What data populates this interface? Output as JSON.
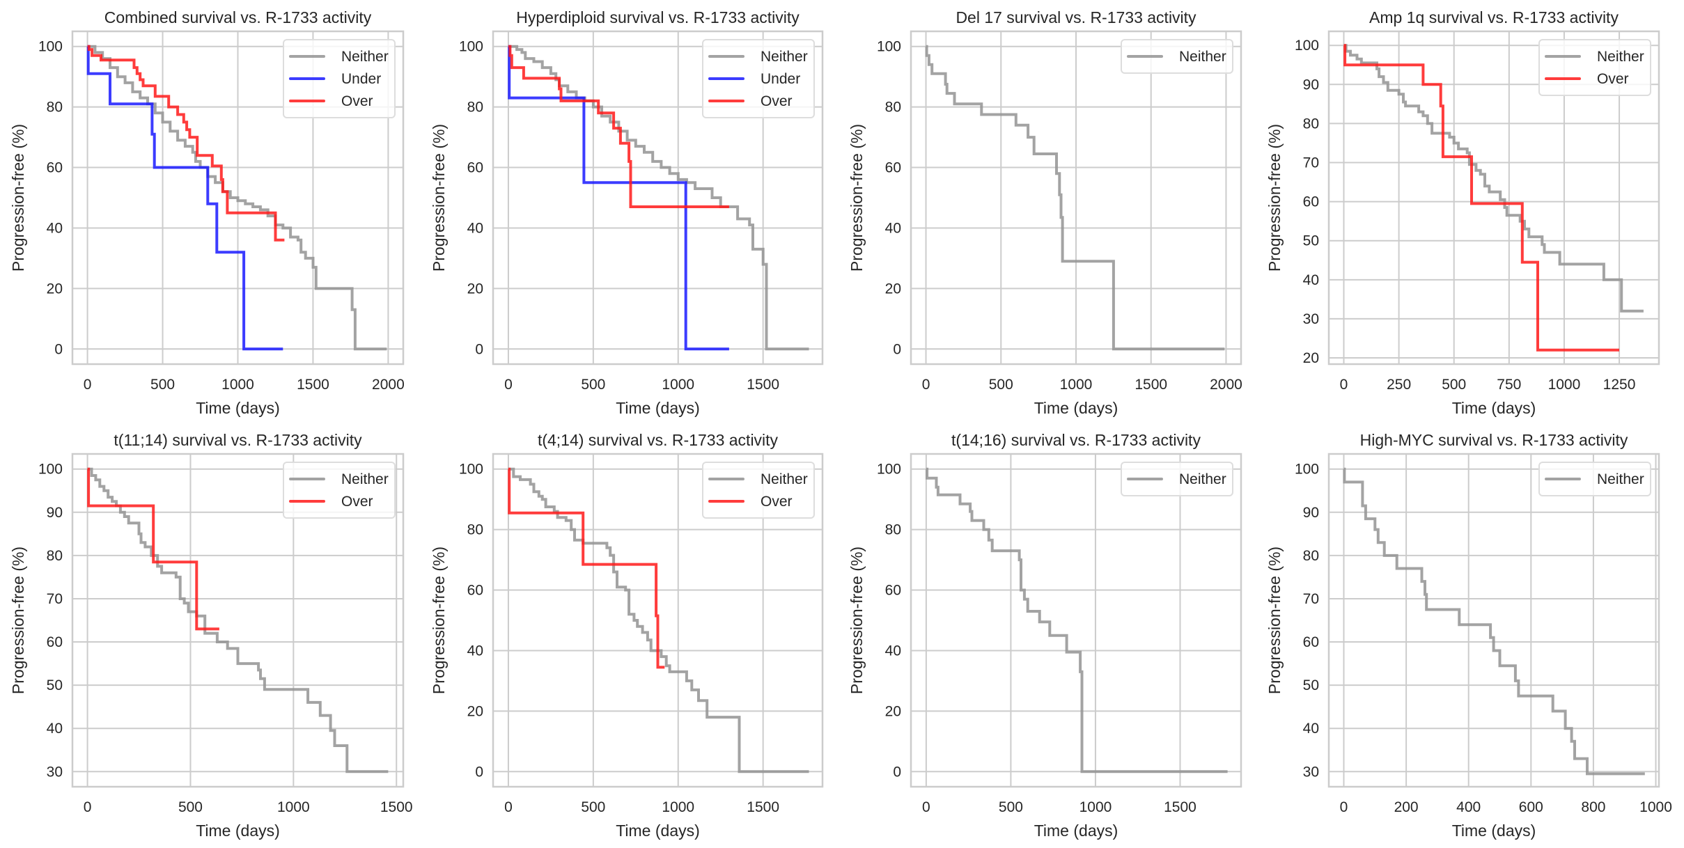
{
  "figure": {
    "colors": {
      "Neither": "#939393",
      "Under": "#1a1aff",
      "Over": "#ff1a1a",
      "grid": "#cccccc",
      "frame": "#cccccc",
      "text": "#262626"
    }
  },
  "chart_data": [
    {
      "type": "line",
      "title": "Combined survival vs. R-1733 activity",
      "xlabel": "Time (days)",
      "ylabel": "Progression-free (%)",
      "xlim": [
        -100,
        2100
      ],
      "ylim": [
        -5,
        105
      ],
      "xticks": [
        0,
        500,
        1000,
        1500,
        2000
      ],
      "yticks": [
        0,
        20,
        40,
        60,
        80,
        100
      ],
      "grid": true,
      "legend": "top-right",
      "series": [
        {
          "name": "Neither",
          "x": [
            0,
            50,
            100,
            150,
            200,
            250,
            300,
            350,
            400,
            450,
            500,
            550,
            600,
            650,
            700,
            720,
            750,
            800,
            850,
            900,
            950,
            1000,
            1050,
            1100,
            1150,
            1200,
            1250,
            1300,
            1350,
            1400,
            1420,
            1450,
            1500,
            1520,
            1750,
            1760,
            1780,
            1990
          ],
          "y": [
            100,
            98,
            96,
            93,
            90,
            88,
            85,
            83,
            81,
            78,
            75,
            72,
            69,
            67,
            65,
            62,
            60,
            57,
            55,
            52,
            50,
            49,
            48,
            47,
            46,
            44,
            41,
            40,
            37,
            36,
            32,
            30,
            27,
            20,
            20,
            13,
            0,
            0
          ]
        },
        {
          "name": "Under",
          "x": [
            0,
            5,
            150,
            430,
            445,
            800,
            860,
            1040,
            1300
          ],
          "y": [
            100,
            91,
            81,
            71,
            60,
            48,
            32,
            0,
            0
          ]
        },
        {
          "name": "Over",
          "x": [
            0,
            10,
            30,
            90,
            300,
            310,
            330,
            350,
            370,
            450,
            540,
            600,
            640,
            660,
            680,
            730,
            830,
            890,
            900,
            930,
            1250,
            1310
          ],
          "y": [
            100,
            99,
            97,
            95.5,
            95.5,
            93,
            91,
            89,
            87,
            83.5,
            80,
            77.5,
            75,
            72.5,
            70,
            64,
            60.5,
            56,
            52,
            45,
            36,
            36
          ]
        }
      ]
    },
    {
      "type": "line",
      "title": "Hyperdiploid survival vs. R-1733 activity",
      "xlabel": "Time (days)",
      "ylabel": "Progression-free (%)",
      "xlim": [
        -90,
        1850
      ],
      "ylim": [
        -5,
        105
      ],
      "xticks": [
        0,
        500,
        1000,
        1500
      ],
      "yticks": [
        0,
        20,
        40,
        60,
        80,
        100
      ],
      "grid": true,
      "legend": "top-right",
      "series": [
        {
          "name": "Neither",
          "x": [
            0,
            50,
            80,
            100,
            150,
            200,
            250,
            280,
            300,
            350,
            400,
            450,
            500,
            550,
            600,
            650,
            700,
            750,
            800,
            850,
            900,
            950,
            1000,
            1050,
            1100,
            1150,
            1200,
            1250,
            1330,
            1350,
            1420,
            1440,
            1500,
            1520,
            1530,
            1770
          ],
          "y": [
            100,
            99,
            98,
            96,
            95,
            93,
            91,
            89,
            87,
            85,
            83,
            82,
            80,
            77,
            75,
            72,
            69,
            67,
            65,
            62,
            60,
            58,
            56,
            55,
            53,
            53,
            50,
            47,
            47,
            43,
            41,
            33,
            28,
            0,
            0,
            0
          ]
        },
        {
          "name": "Under",
          "x": [
            0,
            5,
            445,
            1045,
            1300
          ],
          "y": [
            100,
            83,
            55,
            0,
            0
          ]
        },
        {
          "name": "Over",
          "x": [
            0,
            10,
            20,
            90,
            290,
            300,
            310,
            520,
            530,
            610,
            620,
            650,
            660,
            700,
            710,
            720,
            1300
          ],
          "y": [
            100,
            97,
            93,
            89.5,
            89.5,
            86,
            82,
            82,
            78,
            78,
            73,
            73,
            68,
            68,
            62,
            47,
            47
          ]
        }
      ]
    },
    {
      "type": "line",
      "title": "Del 17 survival vs. R-1733 activity",
      "xlabel": "Time (days)",
      "ylabel": "Progression-free (%)",
      "xlim": [
        -100,
        2100
      ],
      "ylim": [
        -5,
        105
      ],
      "xticks": [
        0,
        500,
        1000,
        1500,
        2000
      ],
      "yticks": [
        0,
        20,
        40,
        60,
        80,
        100
      ],
      "grid": true,
      "legend": "top-right",
      "series": [
        {
          "name": "Neither",
          "x": [
            0,
            5,
            20,
            40,
            130,
            140,
            190,
            370,
            600,
            680,
            720,
            870,
            890,
            900,
            910,
            1250,
            1990
          ],
          "y": [
            100,
            97,
            94,
            91,
            87.5,
            84.5,
            81,
            77.5,
            74,
            70,
            64.5,
            58,
            51,
            43.5,
            29,
            0,
            0
          ]
        }
      ]
    },
    {
      "type": "line",
      "title": "Amp 1q survival vs. R-1733 activity",
      "xlabel": "Time (days)",
      "ylabel": "Progression-free (%)",
      "xlim": [
        -68,
        1430
      ],
      "ylim": [
        18.4,
        103.6
      ],
      "xticks": [
        0,
        250,
        500,
        750,
        1000,
        1250
      ],
      "yticks": [
        20,
        30,
        40,
        50,
        60,
        70,
        80,
        90,
        100
      ],
      "grid": true,
      "legend": "top-right",
      "series": [
        {
          "name": "Neither",
          "x": [
            0,
            10,
            30,
            60,
            80,
            150,
            160,
            180,
            200,
            250,
            270,
            280,
            340,
            360,
            380,
            400,
            480,
            500,
            520,
            560,
            570,
            600,
            620,
            640,
            660,
            710,
            730,
            740,
            800,
            820,
            840,
            900,
            910,
            980,
            1180,
            1260,
            1360
          ],
          "y": [
            100,
            98.5,
            97.5,
            96.5,
            95.5,
            94,
            92,
            90.5,
            88.5,
            87.5,
            85.5,
            84.5,
            83,
            82,
            80,
            77.5,
            76.5,
            75,
            73.5,
            72.5,
            69.5,
            68,
            67,
            64,
            62.5,
            60.5,
            58.5,
            56.5,
            55,
            53,
            51,
            49,
            47,
            44,
            40,
            32,
            32
          ]
        },
        {
          "name": "Over",
          "x": [
            0,
            5,
            340,
            360,
            440,
            450,
            580,
            810,
            880,
            1250
          ],
          "y": [
            100,
            95,
            95,
            90,
            84.5,
            71.5,
            59.5,
            44.5,
            22,
            22
          ]
        }
      ]
    },
    {
      "type": "line",
      "title": "t(11;14) survival vs. R-1733 activity",
      "xlabel": "Time (days)",
      "ylabel": "Progression-free (%)",
      "xlim": [
        -73,
        1533
      ],
      "ylim": [
        26.5,
        103.5
      ],
      "xticks": [
        0,
        500,
        1000,
        1500
      ],
      "yticks": [
        30,
        40,
        50,
        60,
        70,
        80,
        90,
        100
      ],
      "grid": true,
      "legend": "top-right",
      "series": [
        {
          "name": "Neither",
          "x": [
            0,
            20,
            40,
            60,
            80,
            100,
            120,
            140,
            160,
            180,
            200,
            250,
            260,
            280,
            310,
            340,
            360,
            430,
            450,
            470,
            490,
            530,
            570,
            630,
            680,
            730,
            830,
            840,
            860,
            880,
            1070,
            1130,
            1180,
            1200,
            1260,
            1460
          ],
          "y": [
            100,
            98.5,
            97.5,
            96,
            95,
            93.5,
            92.5,
            91.5,
            90,
            89,
            87.5,
            85,
            83,
            82,
            80,
            77.5,
            76,
            75,
            70,
            69,
            67,
            66,
            62,
            60,
            58.5,
            55,
            53.5,
            51.5,
            49,
            49,
            46,
            43,
            39.5,
            36,
            30,
            30
          ]
        },
        {
          "name": "Over",
          "x": [
            0,
            5,
            320,
            530,
            640
          ],
          "y": [
            100,
            91.5,
            78.5,
            63,
            63
          ]
        }
      ]
    },
    {
      "type": "line",
      "title": "t(4;14) survival vs. R-1733 activity",
      "xlabel": "Time (days)",
      "ylabel": "Progression-free (%)",
      "xlim": [
        -90,
        1850
      ],
      "ylim": [
        -5,
        105
      ],
      "xticks": [
        0,
        500,
        1000,
        1500
      ],
      "yticks": [
        0,
        20,
        40,
        60,
        80,
        100
      ],
      "grid": true,
      "legend": "top-right",
      "series": [
        {
          "name": "Neither",
          "x": [
            0,
            30,
            70,
            130,
            150,
            180,
            200,
            220,
            270,
            290,
            340,
            370,
            390,
            440,
            580,
            600,
            620,
            640,
            690,
            710,
            740,
            760,
            790,
            820,
            840,
            900,
            930,
            950,
            1000,
            1050,
            1080,
            1120,
            1170,
            1360,
            1770
          ],
          "y": [
            100,
            97.5,
            96.5,
            95,
            92.5,
            91,
            90,
            87.5,
            86,
            84,
            83,
            80,
            76.5,
            75.5,
            74,
            71.5,
            66,
            61,
            60,
            52,
            50,
            48,
            46,
            43.5,
            40,
            38,
            35,
            33,
            33,
            30,
            27,
            23.5,
            18,
            0,
            0
          ]
        },
        {
          "name": "Over",
          "x": [
            0,
            5,
            440,
            870,
            880,
            920
          ],
          "y": [
            100,
            85.5,
            68.5,
            51.5,
            34.5,
            34.5
          ]
        }
      ]
    },
    {
      "type": "line",
      "title": "t(14;16) survival vs. R-1733 activity",
      "xlabel": "Time (days)",
      "ylabel": "Progression-free (%)",
      "xlim": [
        -90,
        1860
      ],
      "ylim": [
        -5,
        105
      ],
      "xticks": [
        0,
        500,
        1000,
        1500
      ],
      "yticks": [
        0,
        20,
        40,
        60,
        80,
        100
      ],
      "grid": true,
      "legend": "top-right",
      "series": [
        {
          "name": "Neither",
          "x": [
            0,
            5,
            60,
            70,
            200,
            260,
            270,
            340,
            370,
            390,
            550,
            560,
            580,
            600,
            670,
            730,
            830,
            910,
            920,
            1780
          ],
          "y": [
            100,
            97,
            94,
            91.5,
            88.5,
            86,
            83,
            80,
            76.5,
            73,
            70,
            60,
            57,
            53,
            49.5,
            45,
            39.5,
            33,
            0,
            0
          ]
        }
      ]
    },
    {
      "type": "line",
      "title": "High-MYC survival vs. R-1733 activity",
      "xlabel": "Time (days)",
      "ylabel": "Progression-free (%)",
      "xlim": [
        -48,
        1010
      ],
      "ylim": [
        26.5,
        103.5
      ],
      "xticks": [
        0,
        200,
        400,
        600,
        800,
        1000
      ],
      "yticks": [
        30,
        40,
        50,
        60,
        70,
        80,
        90,
        100
      ],
      "grid": true,
      "legend": "top-right",
      "series": [
        {
          "name": "Neither",
          "x": [
            0,
            2,
            60,
            70,
            100,
            110,
            130,
            170,
            250,
            260,
            265,
            370,
            470,
            480,
            500,
            550,
            560,
            670,
            710,
            730,
            740,
            780,
            965
          ],
          "y": [
            100,
            97,
            91.5,
            88.5,
            86,
            83,
            80,
            77,
            74,
            71,
            67.5,
            64,
            61,
            58,
            54.5,
            51,
            47.5,
            44,
            40,
            37,
            33,
            29.5,
            29.5
          ]
        }
      ]
    }
  ]
}
